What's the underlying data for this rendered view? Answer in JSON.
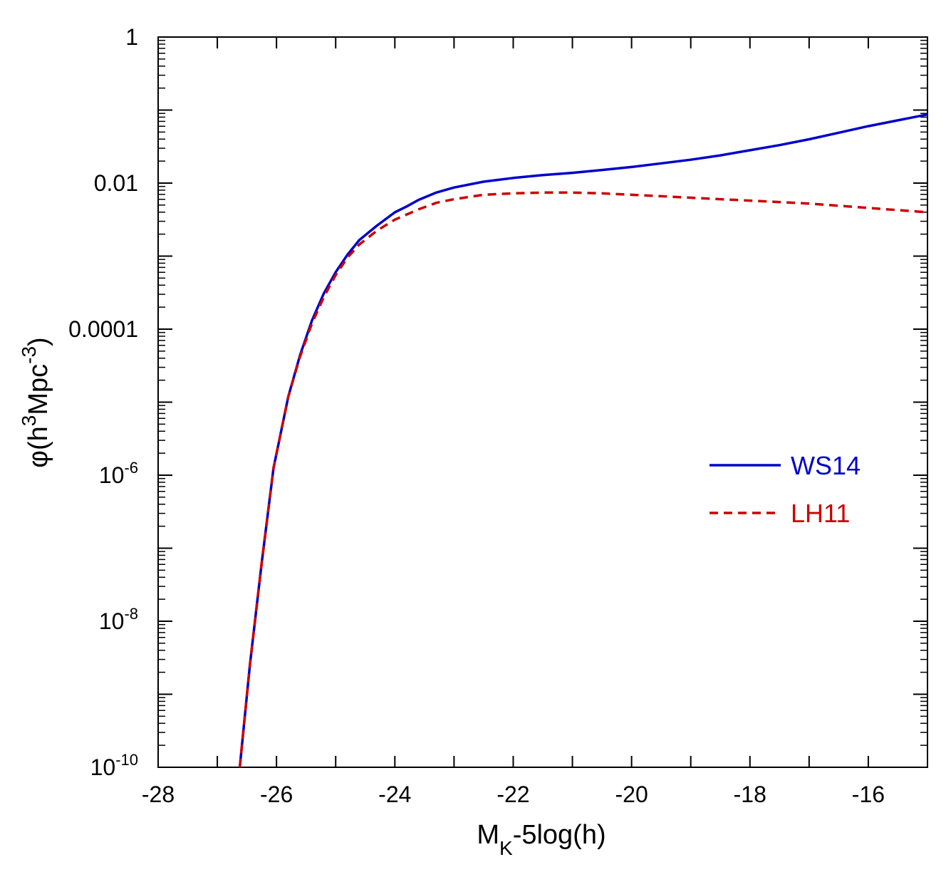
{
  "chart_data": {
    "type": "line",
    "title": "",
    "xlabel": {
      "main": "M",
      "sub": "K",
      "rest": "-5log(h)"
    },
    "ylabel": {
      "p1": "φ(h",
      "sup1": "3",
      "p2": "Mpc",
      "sup2": "-3",
      "p3": ")"
    },
    "xlim": [
      -28,
      -15
    ],
    "ylim_log10": [
      -10,
      0
    ],
    "x_ticks": [
      -28,
      -26,
      -24,
      -22,
      -20,
      -18,
      -16
    ],
    "x_tick_labels": [
      "-28",
      "-26",
      "-24",
      "-22",
      "-20",
      "-18",
      "-16"
    ],
    "y_tick_labels": [
      {
        "exp": 0,
        "base": "1",
        "sup": ""
      },
      {
        "exp": -2,
        "base": "0.01",
        "sup": ""
      },
      {
        "exp": -4,
        "base": "0.0001",
        "sup": ""
      },
      {
        "exp": -6,
        "base": "10",
        "sup": "-6"
      },
      {
        "exp": -8,
        "base": "10",
        "sup": "-8"
      },
      {
        "exp": -10,
        "base": "10",
        "sup": "-10"
      }
    ],
    "legend_position": "center-right",
    "series": [
      {
        "name": "WS14",
        "color": "#0000cc",
        "style": "solid",
        "x": [
          -26.62,
          -26.45,
          -26.25,
          -26.05,
          -25.8,
          -25.6,
          -25.4,
          -25.2,
          -25.0,
          -24.8,
          -24.6,
          -24.3,
          -24.0,
          -23.8,
          -23.6,
          -23.3,
          -23.0,
          -22.5,
          -22.0,
          -21.5,
          -21.0,
          -20.5,
          -20.0,
          -19.5,
          -19.0,
          -18.5,
          -18.0,
          -17.5,
          -17.0,
          -16.5,
          -16.0,
          -15.5,
          -15.0
        ],
        "log10_y": [
          -10.0,
          -8.6,
          -7.2,
          -5.9,
          -4.92,
          -4.35,
          -3.88,
          -3.51,
          -3.22,
          -2.98,
          -2.78,
          -2.58,
          -2.4,
          -2.32,
          -2.23,
          -2.13,
          -2.06,
          -1.98,
          -1.93,
          -1.89,
          -1.86,
          -1.82,
          -1.78,
          -1.73,
          -1.68,
          -1.62,
          -1.55,
          -1.48,
          -1.4,
          -1.31,
          -1.22,
          -1.14,
          -1.06
        ]
      },
      {
        "name": "LH11",
        "color": "#cc0000",
        "style": "dashed",
        "x": [
          -26.62,
          -26.45,
          -26.25,
          -26.05,
          -25.8,
          -25.6,
          -25.4,
          -25.2,
          -25.0,
          -24.8,
          -24.6,
          -24.3,
          -24.0,
          -23.8,
          -23.6,
          -23.3,
          -23.0,
          -22.5,
          -22.0,
          -21.5,
          -21.0,
          -20.5,
          -20.0,
          -19.5,
          -19.0,
          -18.5,
          -18.0,
          -17.5,
          -17.0,
          -16.5,
          -16.0,
          -15.5,
          -15.0
        ],
        "log10_y": [
          -10.0,
          -8.6,
          -7.2,
          -5.9,
          -4.92,
          -4.37,
          -3.92,
          -3.56,
          -3.26,
          -3.02,
          -2.84,
          -2.65,
          -2.5,
          -2.43,
          -2.36,
          -2.27,
          -2.22,
          -2.16,
          -2.14,
          -2.13,
          -2.13,
          -2.14,
          -2.16,
          -2.18,
          -2.2,
          -2.22,
          -2.24,
          -2.26,
          -2.28,
          -2.31,
          -2.34,
          -2.37,
          -2.4
        ]
      }
    ]
  }
}
